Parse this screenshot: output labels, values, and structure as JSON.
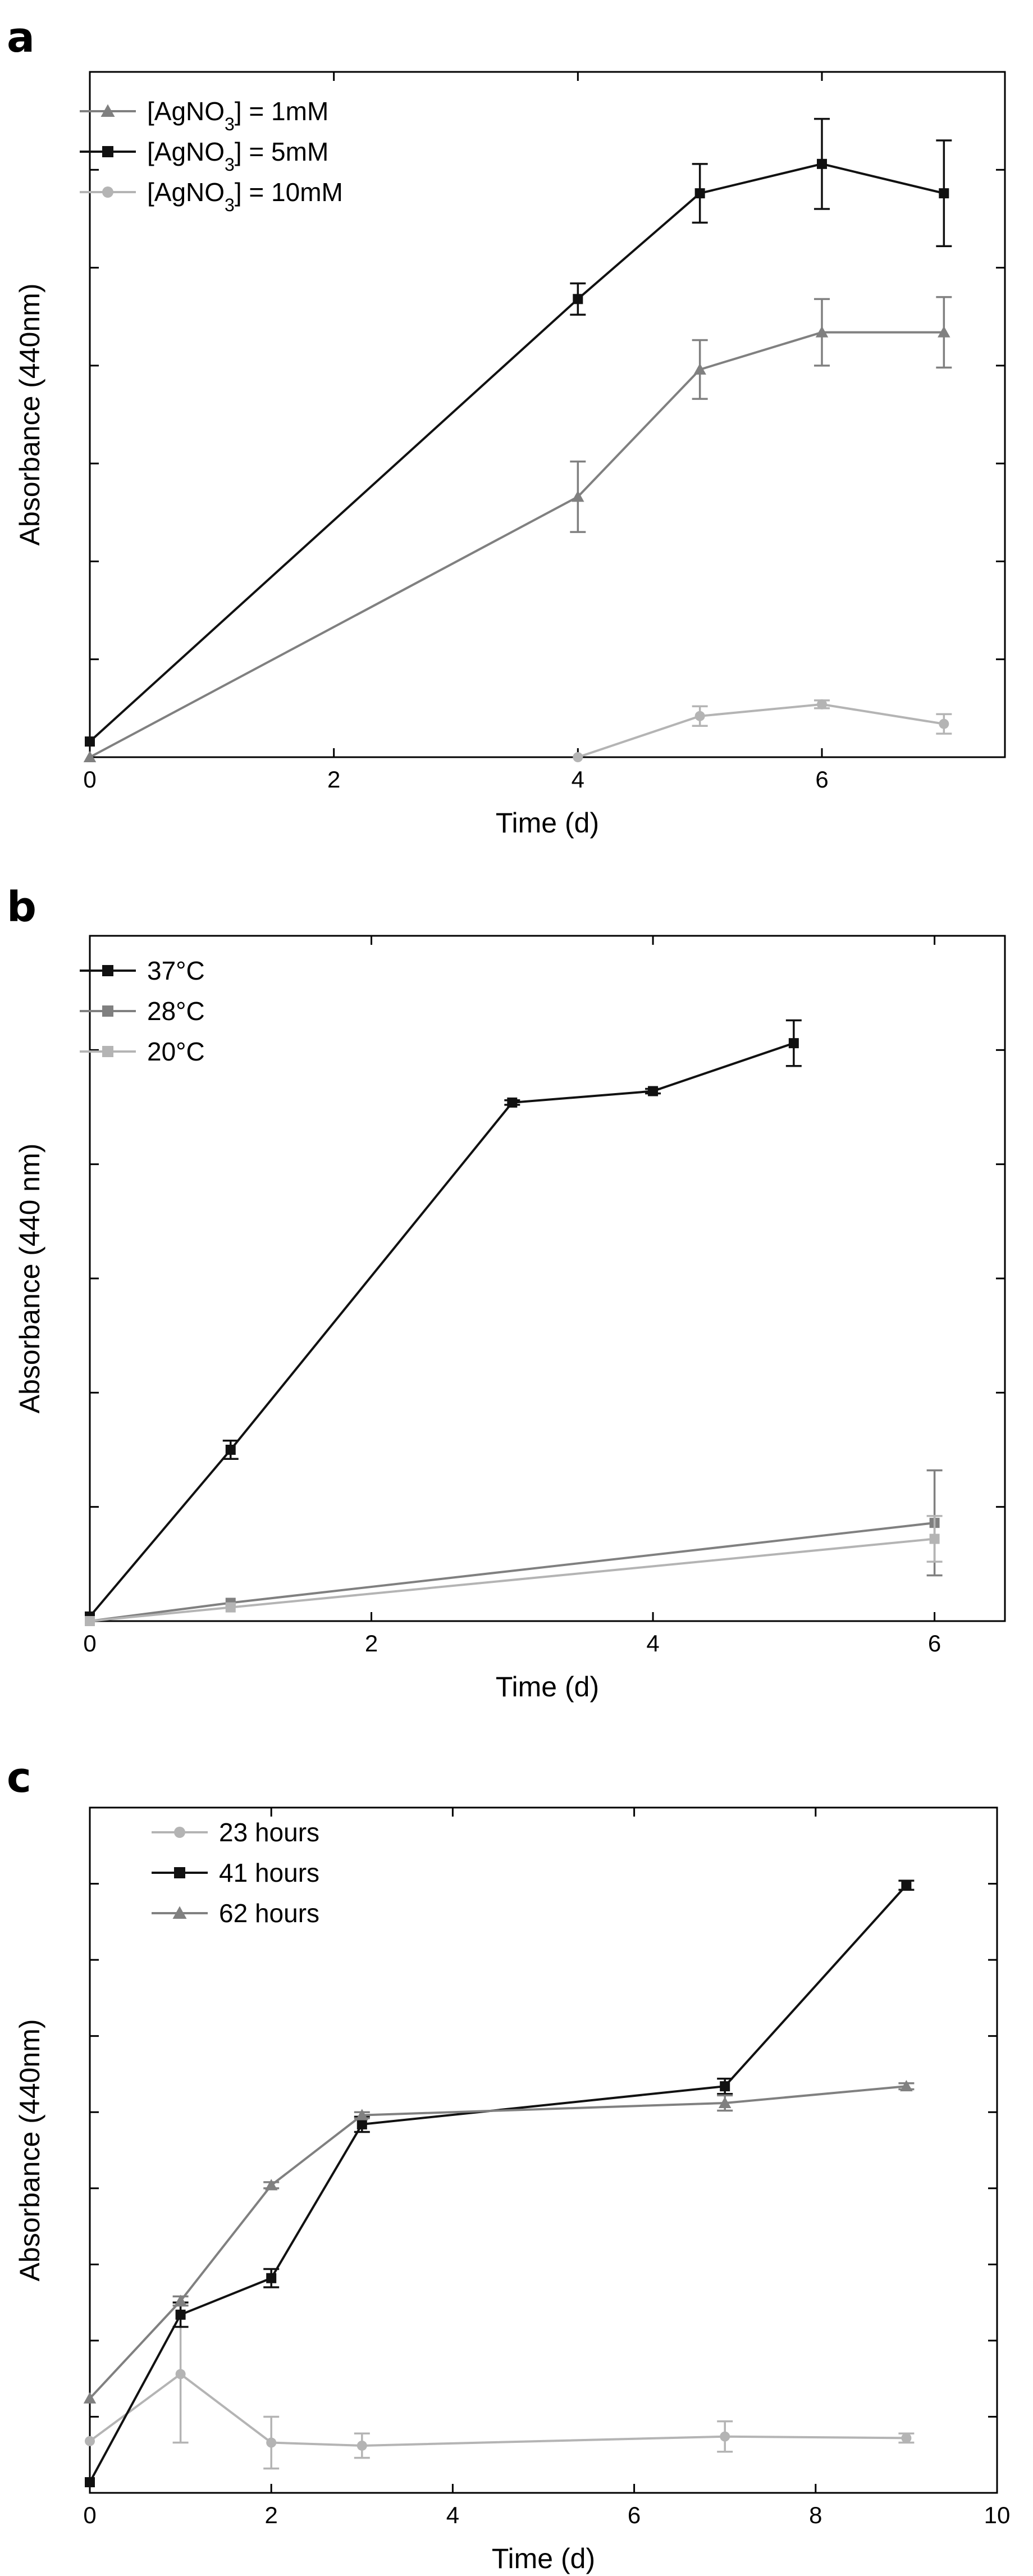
{
  "chart_data": [
    {
      "panel": "a",
      "type": "line",
      "xlabel": "Time (d)",
      "ylabel": "Absorbance (440nm)",
      "xlim": [
        0,
        7.5
      ],
      "ylim": [
        0,
        3.5
      ],
      "xticks": [
        0,
        2,
        4,
        6
      ],
      "yticks": [
        0.5,
        1.0,
        1.5,
        2.0,
        2.5,
        3.0
      ],
      "show_ytick_labels": false,
      "legend": "top-left",
      "series": [
        {
          "name": "[AgNO3] = 1mM",
          "name_main": "[AgNO",
          "name_sub": "3",
          "name_tail": "] = 1mM",
          "color": "#808080",
          "marker": "triangle",
          "x": [
            0,
            4,
            5,
            6,
            7
          ],
          "y": [
            0.0,
            1.33,
            1.98,
            2.17,
            2.17
          ],
          "err": [
            0,
            0.18,
            0.15,
            0.17,
            0.18
          ]
        },
        {
          "name": "[AgNO3] = 5mM",
          "name_main": "[AgNO",
          "name_sub": "3",
          "name_tail": "] = 5mM",
          "color": "#111111",
          "marker": "square",
          "x": [
            0,
            4,
            5,
            6,
            7
          ],
          "y": [
            0.08,
            2.34,
            2.88,
            3.03,
            2.88
          ],
          "err": [
            0,
            0.08,
            0.15,
            0.23,
            0.27
          ]
        },
        {
          "name": "[AgNO3] = 10mM",
          "name_main": "[AgNO",
          "name_sub": "3",
          "name_tail": "] = 10mM",
          "color": "#b4b4b4",
          "marker": "circle",
          "x": [
            4,
            5,
            6,
            7
          ],
          "y": [
            0.0,
            0.21,
            0.27,
            0.17
          ],
          "err": [
            0,
            0.05,
            0.02,
            0.05
          ]
        }
      ]
    },
    {
      "panel": "b",
      "type": "line",
      "xlabel": "Time (d)",
      "ylabel": "Absorbance (440 nm)",
      "xlim": [
        0,
        6.5
      ],
      "ylim": [
        0,
        3.0
      ],
      "xticks": [
        0,
        2,
        4,
        6
      ],
      "yticks": [
        0.5,
        1.0,
        1.5,
        2.0,
        2.5
      ],
      "show_ytick_labels": false,
      "legend": "top-left",
      "series": [
        {
          "name": "37°C",
          "color": "#111111",
          "marker": "square",
          "x": [
            0,
            1,
            3,
            4,
            5
          ],
          "y": [
            0.02,
            0.75,
            2.27,
            2.32,
            2.53
          ],
          "err": [
            0,
            0.04,
            0.01,
            0.01,
            0.1
          ]
        },
        {
          "name": "28°C",
          "color": "#808080",
          "marker": "square",
          "x": [
            0,
            1,
            6
          ],
          "y": [
            0.0,
            0.08,
            0.43
          ],
          "err": [
            0,
            0,
            0.23
          ]
        },
        {
          "name": "20°C",
          "color": "#b4b4b4",
          "marker": "square",
          "x": [
            0,
            1,
            6
          ],
          "y": [
            0.0,
            0.06,
            0.36
          ],
          "err": [
            0,
            0,
            0.1
          ]
        }
      ]
    },
    {
      "panel": "c",
      "type": "line",
      "xlabel": "Time (d)",
      "ylabel": "Absorbance (440nm)",
      "xlim": [
        0,
        10
      ],
      "ylim": [
        0,
        4.5
      ],
      "xticks": [
        0,
        2,
        4,
        6,
        8,
        10
      ],
      "yticks": [
        0.5,
        1.0,
        1.5,
        2.0,
        2.5,
        3.0,
        3.5,
        4.0
      ],
      "show_ytick_labels": false,
      "legend": "top-left",
      "series": [
        {
          "name": "23 hours",
          "color": "#b4b4b4",
          "marker": "circle",
          "x": [
            0,
            1,
            2,
            3,
            7,
            9
          ],
          "y": [
            0.34,
            0.78,
            0.33,
            0.31,
            0.37,
            0.36
          ],
          "err": [
            0,
            0.45,
            0.17,
            0.08,
            0.1,
            0.03
          ]
        },
        {
          "name": "41 hours",
          "color": "#111111",
          "marker": "square",
          "x": [
            0,
            1,
            2,
            3,
            7,
            9
          ],
          "y": [
            0.07,
            1.17,
            1.41,
            2.42,
            2.67,
            3.99
          ],
          "err": [
            0,
            0.08,
            0.06,
            0.05,
            0.05,
            0.03
          ]
        },
        {
          "name": "62 hours",
          "color": "#808080",
          "marker": "triangle",
          "x": [
            0,
            1,
            2,
            3,
            7,
            9
          ],
          "y": [
            0.62,
            1.26,
            2.02,
            2.48,
            2.56,
            2.67
          ],
          "err": [
            0,
            0.03,
            0.02,
            0.02,
            0.05,
            0.02
          ]
        }
      ]
    }
  ]
}
